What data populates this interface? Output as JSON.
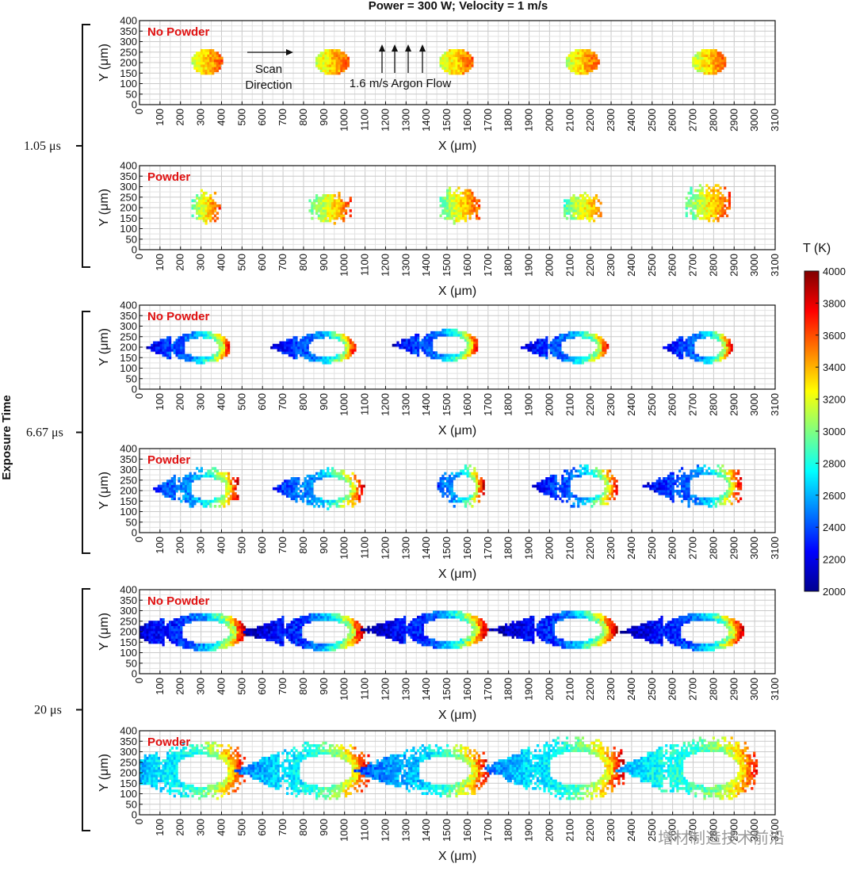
{
  "chart_data": {
    "type": "heatmap",
    "title": "Power = 300 W; Velocity = 1 m/s",
    "y_group_label": "Exposure Time",
    "xlabel": "X (μm)",
    "ylabel": "Y (μm)",
    "xlim": [
      0,
      3100
    ],
    "ylim": [
      0,
      400
    ],
    "x_ticks": [
      0,
      100,
      200,
      300,
      400,
      500,
      600,
      700,
      800,
      900,
      1000,
      1100,
      1200,
      1300,
      1400,
      1500,
      1600,
      1700,
      1800,
      1900,
      2000,
      2100,
      2200,
      2300,
      2400,
      2500,
      2600,
      2700,
      2800,
      2900,
      3000,
      3100
    ],
    "y_ticks": [
      0,
      50,
      100,
      150,
      200,
      250,
      300,
      350,
      400
    ],
    "colorbar": {
      "label": "T (K)",
      "min": 2000,
      "max": 4000,
      "ticks": [
        2000,
        2200,
        2400,
        2600,
        2800,
        3000,
        3200,
        3400,
        3600,
        3800,
        4000
      ],
      "colormap": "jet"
    },
    "groups": [
      {
        "exposure_time": "1.05 μs",
        "panels": [
          {
            "label": "No Powder",
            "annotations": {
              "scan_direction": "Scan\nDirection",
              "argon_flow": "1.6 m/s Argon Flow"
            },
            "pools": [
              {
                "x_center": 330,
                "length": 150,
                "y_center": 205,
                "height": 120,
                "peak_T": 3600,
                "tail_T": 3100,
                "ring": false,
                "tail": 0
              },
              {
                "x_center": 940,
                "length": 170,
                "y_center": 205,
                "height": 120,
                "peak_T": 3600,
                "tail_T": 3100,
                "ring": false,
                "tail": 0
              },
              {
                "x_center": 1545,
                "length": 170,
                "y_center": 205,
                "height": 120,
                "peak_T": 3600,
                "tail_T": 3100,
                "ring": false,
                "tail": 0
              },
              {
                "x_center": 2160,
                "length": 160,
                "y_center": 205,
                "height": 120,
                "peak_T": 3600,
                "tail_T": 3100,
                "ring": false,
                "tail": 0
              },
              {
                "x_center": 2780,
                "length": 170,
                "y_center": 205,
                "height": 120,
                "peak_T": 3600,
                "tail_T": 3100,
                "ring": false,
                "tail": 0
              }
            ]
          },
          {
            "label": "Powder",
            "pools": [
              {
                "x_center": 320,
                "length": 130,
                "y_center": 200,
                "height": 140,
                "peak_T": 3600,
                "tail_T": 2900,
                "ring": false,
                "tail": 0,
                "irregular": 0.4
              },
              {
                "x_center": 930,
                "length": 200,
                "y_center": 200,
                "height": 120,
                "peak_T": 3600,
                "tail_T": 2900,
                "ring": false,
                "tail": 0,
                "irregular": 0.4
              },
              {
                "x_center": 1560,
                "length": 200,
                "y_center": 210,
                "height": 140,
                "peak_T": 3600,
                "tail_T": 2900,
                "ring": false,
                "tail": 0,
                "irregular": 0.4
              },
              {
                "x_center": 2160,
                "length": 180,
                "y_center": 200,
                "height": 120,
                "peak_T": 3500,
                "tail_T": 2900,
                "ring": false,
                "tail": 0,
                "irregular": 0.45
              },
              {
                "x_center": 2770,
                "length": 210,
                "y_center": 220,
                "height": 150,
                "peak_T": 3600,
                "tail_T": 2900,
                "ring": false,
                "tail": 0,
                "irregular": 0.45
              }
            ]
          }
        ]
      },
      {
        "exposure_time": "6.67 μs",
        "panels": [
          {
            "label": "No Powder",
            "pools": [
              {
                "x_center": 300,
                "length": 290,
                "y_center": 200,
                "height": 150,
                "peak_T": 3800,
                "tail_T": 2400,
                "ring": true,
                "tail": 0.45
              },
              {
                "x_center": 910,
                "length": 290,
                "y_center": 200,
                "height": 150,
                "peak_T": 3800,
                "tail_T": 2400,
                "ring": true,
                "tail": 0.45
              },
              {
                "x_center": 1510,
                "length": 290,
                "y_center": 210,
                "height": 150,
                "peak_T": 3800,
                "tail_T": 2400,
                "ring": true,
                "tail": 0.45
              },
              {
                "x_center": 2140,
                "length": 290,
                "y_center": 200,
                "height": 150,
                "peak_T": 3800,
                "tail_T": 2400,
                "ring": true,
                "tail": 0.45
              },
              {
                "x_center": 2770,
                "length": 240,
                "y_center": 200,
                "height": 150,
                "peak_T": 3800,
                "tail_T": 2400,
                "ring": true,
                "tail": 0.4
              }
            ]
          },
          {
            "label": "Powder",
            "pools": [
              {
                "x_center": 330,
                "length": 300,
                "y_center": 210,
                "height": 170,
                "peak_T": 3800,
                "tail_T": 2500,
                "ring": true,
                "tail": 0.4,
                "irregular": 0.3
              },
              {
                "x_center": 930,
                "length": 320,
                "y_center": 210,
                "height": 170,
                "peak_T": 3800,
                "tail_T": 2500,
                "ring": true,
                "tail": 0.4,
                "irregular": 0.3
              },
              {
                "x_center": 1580,
                "length": 190,
                "y_center": 220,
                "height": 170,
                "peak_T": 3800,
                "tail_T": 2500,
                "ring": true,
                "tail": 0.2,
                "irregular": 0.3
              },
              {
                "x_center": 2180,
                "length": 300,
                "y_center": 220,
                "height": 170,
                "peak_T": 3800,
                "tail_T": 2400,
                "ring": true,
                "tail": 0.4,
                "irregular": 0.35
              },
              {
                "x_center": 2770,
                "length": 330,
                "y_center": 220,
                "height": 180,
                "peak_T": 3800,
                "tail_T": 2400,
                "ring": true,
                "tail": 0.45,
                "irregular": 0.35
              }
            ]
          }
        ]
      },
      {
        "exposure_time": "20 μs",
        "panels": [
          {
            "label": "No Powder",
            "pools": [
              {
                "x_center": 320,
                "length": 400,
                "y_center": 200,
                "height": 180,
                "peak_T": 3900,
                "tail_T": 2300,
                "ring": true,
                "tail": 0.55
              },
              {
                "x_center": 900,
                "length": 390,
                "y_center": 200,
                "height": 180,
                "peak_T": 3900,
                "tail_T": 2300,
                "ring": true,
                "tail": 0.55
              },
              {
                "x_center": 1500,
                "length": 400,
                "y_center": 210,
                "height": 180,
                "peak_T": 3900,
                "tail_T": 2300,
                "ring": true,
                "tail": 0.55
              },
              {
                "x_center": 2130,
                "length": 400,
                "y_center": 210,
                "height": 180,
                "peak_T": 3900,
                "tail_T": 2300,
                "ring": true,
                "tail": 0.55
              },
              {
                "x_center": 2750,
                "length": 400,
                "y_center": 200,
                "height": 180,
                "peak_T": 3900,
                "tail_T": 2300,
                "ring": true,
                "tail": 0.55
              }
            ]
          },
          {
            "label": "Powder",
            "pools": [
              {
                "x_center": 300,
                "length": 430,
                "y_center": 210,
                "height": 240,
                "peak_T": 3800,
                "tail_T": 2700,
                "ring": true,
                "tail": 0.5,
                "irregular": 0.3
              },
              {
                "x_center": 900,
                "length": 440,
                "y_center": 210,
                "height": 240,
                "peak_T": 3800,
                "tail_T": 2700,
                "ring": true,
                "tail": 0.5,
                "irregular": 0.3
              },
              {
                "x_center": 1480,
                "length": 440,
                "y_center": 210,
                "height": 220,
                "peak_T": 3800,
                "tail_T": 2600,
                "ring": true,
                "tail": 0.5,
                "irregular": 0.3
              },
              {
                "x_center": 2130,
                "length": 460,
                "y_center": 220,
                "height": 260,
                "peak_T": 3800,
                "tail_T": 2700,
                "ring": true,
                "tail": 0.5,
                "irregular": 0.35
              },
              {
                "x_center": 2780,
                "length": 460,
                "y_center": 220,
                "height": 270,
                "peak_T": 3700,
                "tail_T": 2800,
                "ring": true,
                "tail": 0.5,
                "irregular": 0.35
              }
            ]
          }
        ]
      }
    ]
  },
  "watermark": "增材制造技术前沿"
}
